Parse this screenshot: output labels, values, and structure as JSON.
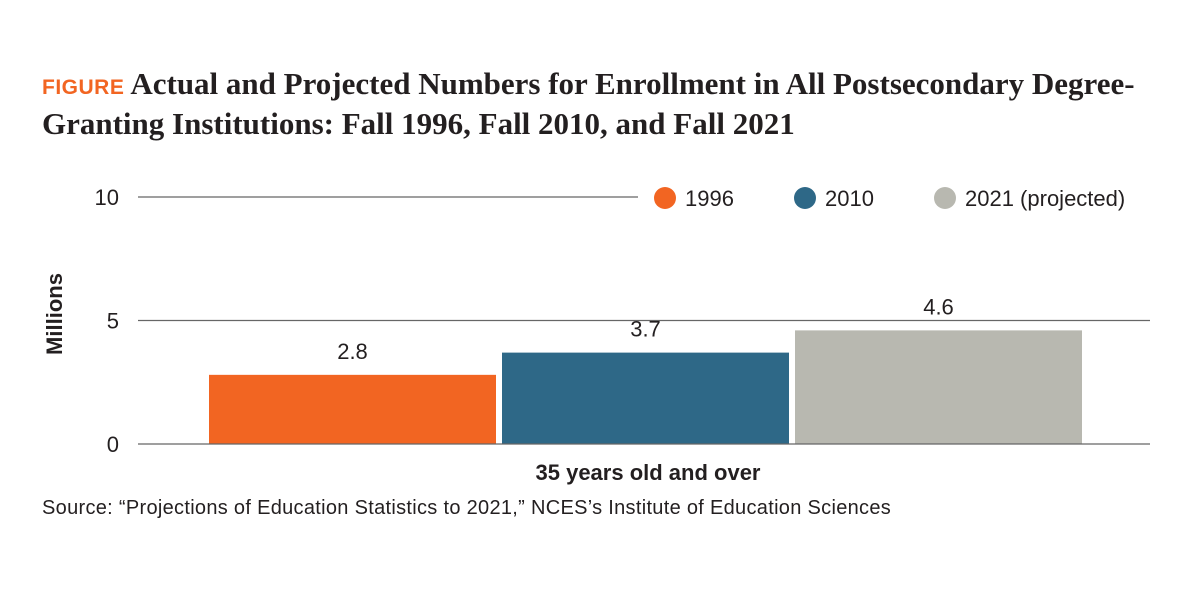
{
  "figure_label": "FIGURE",
  "title": "Actual and Projected Numbers for Enrollment in All Postsecondary Degree-Granting Institutions: Fall 1996, Fall 2010, and Fall 2021",
  "source": "Source: “Projections of Education Statistics to 2021,” NCES’s Institute of Education Sciences",
  "colors": {
    "accent": "#f26522",
    "series_1996": "#f26522",
    "series_2010": "#2e6887",
    "series_2021": "#b8b8b0"
  },
  "chart_data": {
    "type": "bar",
    "categories": [
      "35 years old and over"
    ],
    "series": [
      {
        "name": "1996",
        "values": [
          2.8
        ],
        "label": "2.8",
        "color": "#f26522"
      },
      {
        "name": "2010",
        "values": [
          3.7
        ],
        "label": "3.7",
        "color": "#2e6887"
      },
      {
        "name": "2021 (projected)",
        "values": [
          4.6
        ],
        "label": "4.6",
        "color": "#b8b8b0"
      }
    ],
    "xlabel": "35 years old and over",
    "ylabel": "Millions",
    "ylim": [
      0,
      10
    ],
    "yticks": [
      0,
      5,
      10
    ],
    "grid": true,
    "legend": "top-right"
  }
}
